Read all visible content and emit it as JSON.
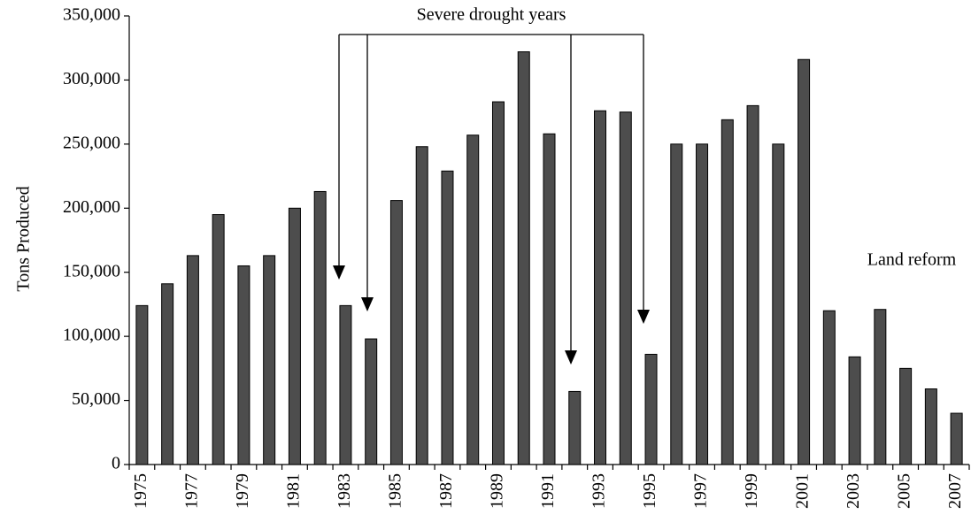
{
  "chart_data": {
    "type": "bar",
    "categories": [
      "1975",
      null,
      "1977",
      null,
      "1979",
      null,
      "1981",
      null,
      "1983",
      null,
      "1985",
      null,
      "1987",
      null,
      "1989",
      null,
      "1991",
      null,
      "1993",
      null,
      "1995",
      null,
      "1997",
      null,
      "1999",
      null,
      "2001",
      null,
      "2003",
      null,
      "2005",
      null,
      "2007"
    ],
    "values": [
      124000,
      141000,
      163000,
      195000,
      155000,
      163000,
      200000,
      213000,
      124000,
      98000,
      206000,
      248000,
      229000,
      257000,
      283000,
      322000,
      258000,
      57000,
      276000,
      275000,
      86000,
      250000,
      250000,
      269000,
      280000,
      250000,
      316000,
      120000,
      84000,
      121000,
      75000,
      59000,
      40000
    ],
    "color": "#4d4d4d",
    "y_label": "Tons Produced",
    "ylim": [
      0,
      350000
    ],
    "yticks": [
      0,
      {
        "value": 50000,
        "label": "50,000"
      },
      {
        "value": 100000,
        "label": "100,000"
      },
      {
        "value": 150000,
        "label": "150,000"
      },
      {
        "value": 200000,
        "label": "200,000"
      },
      {
        "value": 250000,
        "label": "250,000"
      },
      {
        "value": 300000,
        "label": "300,000"
      },
      {
        "value": 350000,
        "label": "350,000"
      }
    ],
    "grid": false,
    "annotations": [
      "Severe drought years",
      "Land reform"
    ]
  }
}
